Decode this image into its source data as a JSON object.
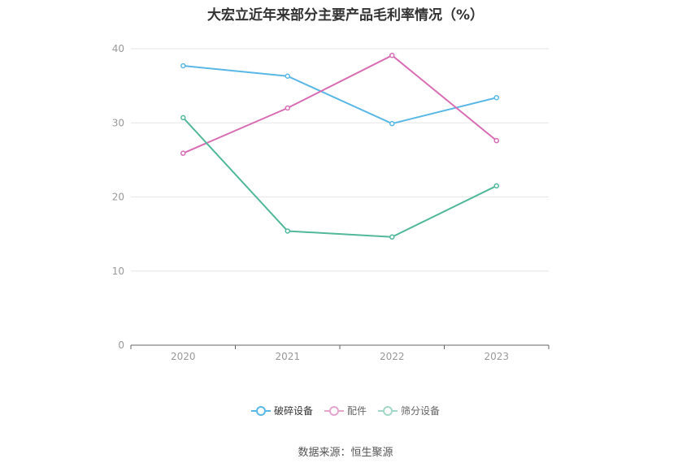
{
  "chart_data": {
    "type": "line",
    "title": "大宏立近年来部分主要产品毛利率情况（%）",
    "categories": [
      "2020",
      "2021",
      "2022",
      "2023"
    ],
    "ylim": [
      0,
      40
    ],
    "yticks": [
      0,
      10,
      20,
      30,
      40
    ],
    "grid": true,
    "legend_position": "bottom",
    "series": [
      {
        "name": "破碎设备",
        "color": "#5ab8e6",
        "values": [
          37.7,
          36.3,
          29.9,
          33.4
        ]
      },
      {
        "name": "配件",
        "color": "#d96db4",
        "values": [
          25.9,
          32.0,
          39.1,
          27.6
        ]
      },
      {
        "name": "筛分设备",
        "color": "#52b89a",
        "values": [
          30.7,
          15.4,
          14.6,
          21.5
        ]
      }
    ]
  },
  "source": "数据来源：恒生聚源"
}
